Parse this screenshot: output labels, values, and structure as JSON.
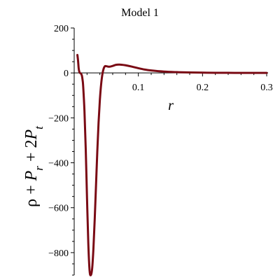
{
  "chart_data": {
    "type": "line",
    "title": "Model 1",
    "xlabel": "r",
    "ylabel": {
      "parts": [
        "ρ",
        " + ",
        "P",
        "r",
        " + 2",
        "P",
        "t"
      ]
    },
    "xlim": [
      0,
      0.3
    ],
    "ylim": [
      -900,
      200
    ],
    "xticks": [
      0.1,
      0.2,
      0.3
    ],
    "xtick_labels": [
      "0.1",
      "0.2",
      "0.3"
    ],
    "yticks": [
      200,
      0,
      -200,
      -400,
      -600,
      -800
    ],
    "ytick_labels": [
      "200",
      "0",
      "−200",
      "−400",
      "−600",
      "−800"
    ],
    "series": [
      {
        "color": "#7a0a14",
        "x": [
          0.005,
          0.006,
          0.007,
          0.008,
          0.009,
          0.01,
          0.011,
          0.012,
          0.013,
          0.014,
          0.016,
          0.018,
          0.02,
          0.022,
          0.024,
          0.026,
          0.028,
          0.03,
          0.032,
          0.034,
          0.036,
          0.038,
          0.04,
          0.042,
          0.044,
          0.046,
          0.048,
          0.05,
          0.053,
          0.056,
          0.06,
          0.065,
          0.07,
          0.075,
          0.08,
          0.09,
          0.1,
          0.11,
          0.12,
          0.14,
          0.16,
          0.18,
          0.2,
          0.22,
          0.25,
          0.28,
          0.3
        ],
        "y": [
          80,
          55,
          20,
          5,
          0,
          -2,
          -5,
          -12,
          -30,
          -60,
          -170,
          -340,
          -560,
          -760,
          -880,
          -900,
          -870,
          -780,
          -650,
          -500,
          -350,
          -220,
          -120,
          -50,
          -5,
          20,
          30,
          30,
          28,
          28,
          31,
          36,
          37,
          36,
          34,
          28,
          21,
          15,
          11,
          6,
          3.5,
          2,
          1.2,
          0.7,
          0.3,
          0.1,
          0.05
        ]
      }
    ]
  }
}
